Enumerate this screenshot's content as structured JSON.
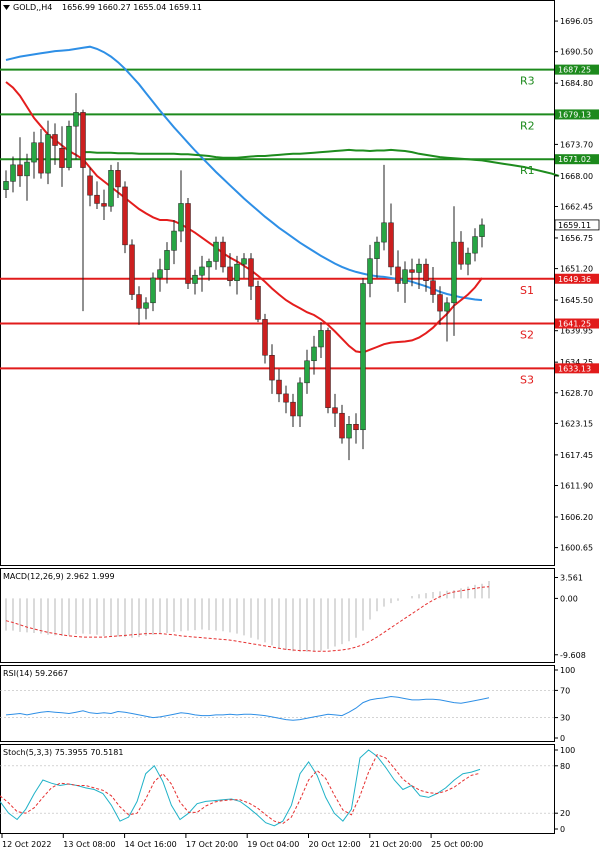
{
  "header": {
    "symbol_label": "GOLD,,H4",
    "ohlc_text": "1656.99 1660.27 1655.04 1659.11",
    "symbol_icon": "triangle-down-icon"
  },
  "colors": {
    "bull": "#27a644",
    "bear": "#cc1f1f",
    "blue_ma": "#2e8fe6",
    "red_ma": "#e41d1d",
    "green_ma": "#1e8c1e",
    "level_green": "#1d8a1d",
    "level_red": "#e11b1b",
    "macd_hist": "#b4b4b4",
    "macd_signal": "#e63030",
    "rsi_line": "#2e8fe6",
    "stoch_main": "#20b2c8",
    "stoch_signal": "#e63030"
  },
  "x_axis_labels": [
    "12 Oct 2022",
    "13 Oct 08:00",
    "14 Oct 16:00",
    "17 Oct 20:00",
    "19 Oct 04:00",
    "20 Oct 12:00",
    "21 Oct 20:00",
    "25 Oct 00:00"
  ],
  "chart_data": [
    {
      "type": "candlestick",
      "title": "GOLD,,H4",
      "ylim": [
        1597.5,
        1699.5
      ],
      "y_ticks": [
        "1696.05",
        "1690.50",
        "1684.80",
        "1679.25",
        "1673.70",
        "1668.00",
        "1662.45",
        "1656.75",
        "1651.20",
        "1645.50",
        "1639.95",
        "1634.25",
        "1628.70",
        "1623.15",
        "1617.45",
        "1611.90",
        "1606.20",
        "1600.65"
      ],
      "current_price": {
        "label": "1659.11",
        "value": 1659.11
      },
      "levels": [
        {
          "name": "R3",
          "value": 1687.25,
          "label": "1687.25",
          "kind": "resistance"
        },
        {
          "name": "R2",
          "value": 1679.13,
          "label": "1679.13",
          "kind": "resistance"
        },
        {
          "name": "R1",
          "value": 1671.02,
          "label": "1671.02",
          "kind": "resistance"
        },
        {
          "name": "S1",
          "value": 1649.36,
          "label": "1649.36",
          "kind": "support"
        },
        {
          "name": "S2",
          "value": 1641.25,
          "label": "1641.25",
          "kind": "support"
        },
        {
          "name": "S3",
          "value": 1633.13,
          "label": "1633.13",
          "kind": "support"
        }
      ],
      "candles": [
        {
          "o": 1665.5,
          "h": 1669.0,
          "l": 1664.0,
          "c": 1667.0
        },
        {
          "o": 1667.0,
          "h": 1671.5,
          "l": 1665.0,
          "c": 1670.0
        },
        {
          "o": 1670.0,
          "h": 1675.0,
          "l": 1666.0,
          "c": 1668.0
        },
        {
          "o": 1668.0,
          "h": 1672.0,
          "l": 1663.5,
          "c": 1670.5
        },
        {
          "o": 1670.5,
          "h": 1676.0,
          "l": 1667.5,
          "c": 1674.0
        },
        {
          "o": 1674.0,
          "h": 1676.5,
          "l": 1667.5,
          "c": 1668.5
        },
        {
          "o": 1668.5,
          "h": 1678.0,
          "l": 1666.5,
          "c": 1675.5
        },
        {
          "o": 1675.5,
          "h": 1677.5,
          "l": 1670.0,
          "c": 1673.5
        },
        {
          "o": 1673.0,
          "h": 1677.0,
          "l": 1666.0,
          "c": 1669.5
        },
        {
          "o": 1669.5,
          "h": 1678.0,
          "l": 1669.0,
          "c": 1677.0
        },
        {
          "o": 1677.0,
          "h": 1683.0,
          "l": 1671.0,
          "c": 1679.5
        },
        {
          "o": 1679.5,
          "h": 1680.0,
          "l": 1643.5,
          "c": 1669.5
        },
        {
          "o": 1668.0,
          "h": 1669.5,
          "l": 1662.5,
          "c": 1664.5
        },
        {
          "o": 1664.5,
          "h": 1667.0,
          "l": 1662.0,
          "c": 1663.0
        },
        {
          "o": 1663.0,
          "h": 1665.5,
          "l": 1660.0,
          "c": 1662.5
        },
        {
          "o": 1662.5,
          "h": 1670.0,
          "l": 1661.5,
          "c": 1669.0
        },
        {
          "o": 1669.0,
          "h": 1670.5,
          "l": 1664.0,
          "c": 1666.0
        },
        {
          "o": 1666.0,
          "h": 1667.0,
          "l": 1654.0,
          "c": 1655.5
        },
        {
          "o": 1655.5,
          "h": 1656.5,
          "l": 1645.5,
          "c": 1646.5
        },
        {
          "o": 1646.5,
          "h": 1648.0,
          "l": 1641.0,
          "c": 1644.0
        },
        {
          "o": 1644.0,
          "h": 1646.0,
          "l": 1642.0,
          "c": 1645.0
        },
        {
          "o": 1645.0,
          "h": 1650.5,
          "l": 1643.5,
          "c": 1649.5
        },
        {
          "o": 1649.5,
          "h": 1653.0,
          "l": 1647.0,
          "c": 1651.0
        },
        {
          "o": 1651.0,
          "h": 1656.0,
          "l": 1648.5,
          "c": 1654.5
        },
        {
          "o": 1654.5,
          "h": 1660.0,
          "l": 1652.0,
          "c": 1658.0
        },
        {
          "o": 1658.0,
          "h": 1669.0,
          "l": 1656.0,
          "c": 1663.0
        },
        {
          "o": 1663.0,
          "h": 1664.0,
          "l": 1647.5,
          "c": 1648.5
        },
        {
          "o": 1648.5,
          "h": 1651.0,
          "l": 1646.5,
          "c": 1650.0
        },
        {
          "o": 1650.0,
          "h": 1653.5,
          "l": 1647.0,
          "c": 1651.5
        },
        {
          "o": 1651.5,
          "h": 1653.0,
          "l": 1649.0,
          "c": 1652.5
        },
        {
          "o": 1652.5,
          "h": 1657.0,
          "l": 1651.0,
          "c": 1656.0
        },
        {
          "o": 1656.0,
          "h": 1657.0,
          "l": 1650.5,
          "c": 1651.5
        },
        {
          "o": 1651.5,
          "h": 1654.0,
          "l": 1648.0,
          "c": 1649.0
        },
        {
          "o": 1649.0,
          "h": 1653.5,
          "l": 1646.5,
          "c": 1652.0
        },
        {
          "o": 1652.0,
          "h": 1654.0,
          "l": 1649.5,
          "c": 1653.0
        },
        {
          "o": 1653.0,
          "h": 1654.0,
          "l": 1645.5,
          "c": 1648.0
        },
        {
          "o": 1648.0,
          "h": 1649.0,
          "l": 1641.5,
          "c": 1642.0
        },
        {
          "o": 1642.0,
          "h": 1643.0,
          "l": 1634.0,
          "c": 1635.5
        },
        {
          "o": 1635.5,
          "h": 1637.5,
          "l": 1628.5,
          "c": 1631.0
        },
        {
          "o": 1631.0,
          "h": 1633.0,
          "l": 1627.0,
          "c": 1628.5
        },
        {
          "o": 1628.5,
          "h": 1630.0,
          "l": 1625.0,
          "c": 1627.0
        },
        {
          "o": 1627.0,
          "h": 1628.5,
          "l": 1622.5,
          "c": 1624.5
        },
        {
          "o": 1624.5,
          "h": 1631.5,
          "l": 1622.5,
          "c": 1630.5
        },
        {
          "o": 1630.5,
          "h": 1636.5,
          "l": 1628.5,
          "c": 1634.5
        },
        {
          "o": 1634.5,
          "h": 1639.0,
          "l": 1632.0,
          "c": 1637.0
        },
        {
          "o": 1637.0,
          "h": 1641.5,
          "l": 1635.0,
          "c": 1640.0
        },
        {
          "o": 1640.0,
          "h": 1640.5,
          "l": 1625.0,
          "c": 1626.0
        },
        {
          "o": 1626.0,
          "h": 1628.5,
          "l": 1622.5,
          "c": 1625.0
        },
        {
          "o": 1625.0,
          "h": 1626.5,
          "l": 1619.5,
          "c": 1620.5
        },
        {
          "o": 1620.5,
          "h": 1624.5,
          "l": 1616.5,
          "c": 1623.0
        },
        {
          "o": 1623.0,
          "h": 1625.0,
          "l": 1619.5,
          "c": 1622.0
        },
        {
          "o": 1622.0,
          "h": 1649.5,
          "l": 1618.5,
          "c": 1648.5
        },
        {
          "o": 1648.5,
          "h": 1655.5,
          "l": 1646.0,
          "c": 1653.0
        },
        {
          "o": 1653.0,
          "h": 1657.0,
          "l": 1649.5,
          "c": 1656.0
        },
        {
          "o": 1656.0,
          "h": 1670.0,
          "l": 1654.5,
          "c": 1659.5
        },
        {
          "o": 1659.5,
          "h": 1663.0,
          "l": 1650.0,
          "c": 1651.5
        },
        {
          "o": 1651.5,
          "h": 1654.5,
          "l": 1647.0,
          "c": 1648.5
        },
        {
          "o": 1648.5,
          "h": 1652.5,
          "l": 1645.0,
          "c": 1651.0
        },
        {
          "o": 1651.0,
          "h": 1653.0,
          "l": 1648.0,
          "c": 1650.5
        },
        {
          "o": 1650.5,
          "h": 1653.0,
          "l": 1647.5,
          "c": 1652.0
        },
        {
          "o": 1652.0,
          "h": 1653.0,
          "l": 1647.0,
          "c": 1649.0
        },
        {
          "o": 1649.0,
          "h": 1651.5,
          "l": 1645.0,
          "c": 1646.5
        },
        {
          "o": 1646.5,
          "h": 1648.0,
          "l": 1641.0,
          "c": 1643.5
        },
        {
          "o": 1643.5,
          "h": 1646.0,
          "l": 1638.0,
          "c": 1645.0
        },
        {
          "o": 1645.0,
          "h": 1662.5,
          "l": 1639.0,
          "c": 1656.0
        },
        {
          "o": 1656.0,
          "h": 1658.0,
          "l": 1651.0,
          "c": 1652.0
        },
        {
          "o": 1652.0,
          "h": 1655.0,
          "l": 1650.0,
          "c": 1654.0
        },
        {
          "o": 1654.0,
          "h": 1658.5,
          "l": 1652.5,
          "c": 1657.0
        },
        {
          "o": 1656.99,
          "h": 1660.27,
          "l": 1655.04,
          "c": 1659.11
        }
      ],
      "moving_averages": [
        {
          "color_key": "blue_ma",
          "values": [
            1689.0,
            1689.3,
            1689.6,
            1689.8,
            1690.0,
            1690.2,
            1690.4,
            1690.6,
            1690.7,
            1690.8,
            1691.0,
            1691.2,
            1691.4,
            1691.0,
            1690.4,
            1689.6,
            1688.6,
            1687.4,
            1686.0,
            1684.6,
            1683.0,
            1681.4,
            1679.8,
            1678.3,
            1676.8,
            1675.4,
            1674.0,
            1672.6,
            1671.3,
            1670.0,
            1668.7,
            1667.5,
            1666.3,
            1665.1,
            1663.9,
            1662.8,
            1661.7,
            1660.6,
            1659.6,
            1658.6,
            1657.7,
            1656.8,
            1655.9,
            1655.1,
            1654.3,
            1653.5,
            1652.8,
            1652.1,
            1651.5,
            1651.0,
            1650.6,
            1650.3,
            1650.0,
            1649.8,
            1649.7,
            1649.5,
            1649.3,
            1649.1,
            1648.8,
            1648.4,
            1648.0,
            1647.5,
            1647.0,
            1646.6,
            1646.3,
            1646.0,
            1645.8,
            1645.6,
            1645.5
          ]
        },
        {
          "color_key": "red_ma",
          "values": [
            1685.0,
            1684.0,
            1682.5,
            1680.5,
            1678.5,
            1677.0,
            1675.5,
            1674.5,
            1673.5,
            1672.5,
            1671.8,
            1671.0,
            1669.5,
            1668.0,
            1667.0,
            1666.0,
            1665.0,
            1664.0,
            1663.0,
            1662.0,
            1661.2,
            1660.5,
            1660.0,
            1660.0,
            1659.8,
            1659.2,
            1658.5,
            1657.7,
            1656.8,
            1655.9,
            1655.0,
            1654.0,
            1653.2,
            1652.5,
            1651.7,
            1650.9,
            1649.9,
            1648.8,
            1647.6,
            1646.5,
            1645.5,
            1644.7,
            1644.0,
            1643.3,
            1642.8,
            1642.0,
            1641.0,
            1639.8,
            1638.5,
            1637.2,
            1636.2,
            1636.0,
            1636.5,
            1637.0,
            1637.5,
            1637.8,
            1637.9,
            1638.0,
            1638.2,
            1638.7,
            1639.5,
            1640.5,
            1641.8,
            1643.0,
            1644.5,
            1645.5,
            1646.5,
            1647.8,
            1649.5
          ]
        },
        {
          "color_key": "green_ma",
          "values": [
            1672.3,
            1672.3,
            1672.2,
            1672.2,
            1672.2,
            1672.1,
            1672.1,
            1672.1,
            1672.0,
            1672.0,
            1672.0,
            1672.0,
            1672.0,
            1672.0,
            1671.9,
            1671.9,
            1671.8,
            1671.7,
            1671.6,
            1671.4,
            1671.3,
            1671.3,
            1671.3,
            1671.4,
            1671.5,
            1671.6,
            1671.6,
            1671.7,
            1671.8,
            1671.9,
            1672.0,
            1672.0,
            1672.1,
            1672.2,
            1672.3,
            1672.4,
            1672.5,
            1672.6,
            1672.7,
            1672.6,
            1672.6,
            1672.5,
            1672.6,
            1672.6,
            1672.7,
            1672.6,
            1672.5,
            1672.3,
            1672.0,
            1671.8,
            1671.6,
            1671.4,
            1671.3,
            1671.2,
            1671.1,
            1671.0,
            1670.9,
            1670.8,
            1670.6,
            1670.4,
            1670.2,
            1670.0,
            1669.8,
            1669.6,
            1669.3,
            1669.0,
            1668.7,
            1668.4,
            1668.0
          ],
          "start_index": 11
        }
      ]
    },
    {
      "type": "bar",
      "title": "MACD(12,26,9) 2.962 1.999",
      "ylim": [
        -10.5,
        4.5
      ],
      "y_ticks": [
        "3.561",
        "0.00",
        "-9.608"
      ],
      "histogram": [
        -5.5,
        -5.5,
        -5.7,
        -5.8,
        -5.9,
        -6.0,
        -6.2,
        -6.3,
        -6.4,
        -6.3,
        -6.1,
        -6.0,
        -6.1,
        -6.2,
        -6.4,
        -6.5,
        -6.5,
        -6.6,
        -6.7,
        -6.6,
        -6.4,
        -6.2,
        -6.0,
        -5.9,
        -5.7,
        -5.6,
        -5.5,
        -5.4,
        -5.3,
        -5.4,
        -5.5,
        -5.6,
        -5.8,
        -6.0,
        -6.3,
        -6.7,
        -7.0,
        -7.5,
        -8.0,
        -8.5,
        -8.8,
        -9.0,
        -9.1,
        -9.1,
        -9.0,
        -8.9,
        -8.6,
        -8.2,
        -7.8,
        -7.3,
        -6.7,
        -5.5,
        -3.6,
        -2.2,
        -1.4,
        -0.8,
        -0.4,
        0.0,
        0.4,
        0.7,
        0.9,
        1.1,
        1.2,
        1.3,
        1.4,
        1.7,
        2.0,
        2.3,
        2.5,
        2.962
      ],
      "signal": [
        -3.8,
        -4.1,
        -4.5,
        -4.9,
        -5.2,
        -5.5,
        -5.8,
        -6.0,
        -6.2,
        -6.4,
        -6.5,
        -6.6,
        -6.6,
        -6.6,
        -6.6,
        -6.5,
        -6.4,
        -6.3,
        -6.2,
        -6.1,
        -6.0,
        -6.0,
        -6.0,
        -6.1,
        -6.2,
        -6.4,
        -6.5,
        -6.6,
        -6.7,
        -6.8,
        -6.9,
        -7.0,
        -7.1,
        -7.3,
        -7.5,
        -7.7,
        -7.9,
        -8.1,
        -8.3,
        -8.5,
        -8.7,
        -8.8,
        -8.9,
        -8.9,
        -9.0,
        -9.0,
        -9.0,
        -8.9,
        -8.8,
        -8.6,
        -8.3,
        -7.9,
        -7.3,
        -6.6,
        -5.8,
        -5.0,
        -4.2,
        -3.4,
        -2.6,
        -1.8,
        -1.0,
        -0.3,
        0.3,
        0.8,
        1.1,
        1.3,
        1.5,
        1.7,
        1.9,
        1.999
      ]
    },
    {
      "type": "line",
      "title": "RSI(14) 59.2667",
      "ylim": [
        0,
        100
      ],
      "y_ticks": [
        "100",
        "70",
        "30",
        "0"
      ],
      "values": [
        34,
        35,
        36,
        34,
        36,
        38,
        39,
        38,
        37,
        36,
        38,
        40,
        37,
        36,
        37,
        36,
        39,
        38,
        36,
        34,
        32,
        30,
        31,
        33,
        35,
        37,
        36,
        34,
        33,
        33,
        34,
        34,
        35,
        34,
        35,
        35,
        34,
        33,
        31,
        29,
        27,
        26,
        27,
        29,
        31,
        33,
        35,
        34,
        33,
        38,
        44,
        52,
        56,
        58,
        59,
        61,
        60,
        58,
        56,
        56,
        57,
        57,
        56,
        54,
        52,
        51,
        53,
        55,
        57,
        59.2667
      ]
    },
    {
      "type": "line",
      "title": "Stoch(5,3,3) 75.3955 70.5181",
      "ylim": [
        0,
        100
      ],
      "y_ticks": [
        "100",
        "80",
        "20",
        "0"
      ],
      "series_main": [
        35,
        20,
        12,
        25,
        45,
        62,
        58,
        55,
        57,
        55,
        52,
        50,
        45,
        30,
        10,
        15,
        35,
        70,
        80,
        60,
        30,
        12,
        20,
        32,
        35,
        36,
        37,
        38,
        35,
        27,
        18,
        8,
        4,
        10,
        30,
        70,
        85,
        68,
        40,
        20,
        10,
        25,
        90,
        100,
        92,
        78,
        62,
        50,
        55,
        42,
        40,
        45,
        52,
        62,
        70,
        72,
        75.3955
      ],
      "series_signal": [
        42,
        33,
        22,
        20,
        27,
        40,
        52,
        58,
        57,
        55,
        55,
        52,
        49,
        42,
        28,
        18,
        20,
        38,
        60,
        70,
        57,
        34,
        21,
        21,
        29,
        34,
        36,
        37,
        37,
        33,
        27,
        18,
        10,
        7,
        15,
        37,
        62,
        74,
        64,
        43,
        24,
        18,
        42,
        72,
        94,
        90,
        77,
        63,
        55,
        49,
        46,
        45,
        48,
        53,
        61,
        68,
        70.5181
      ]
    }
  ]
}
